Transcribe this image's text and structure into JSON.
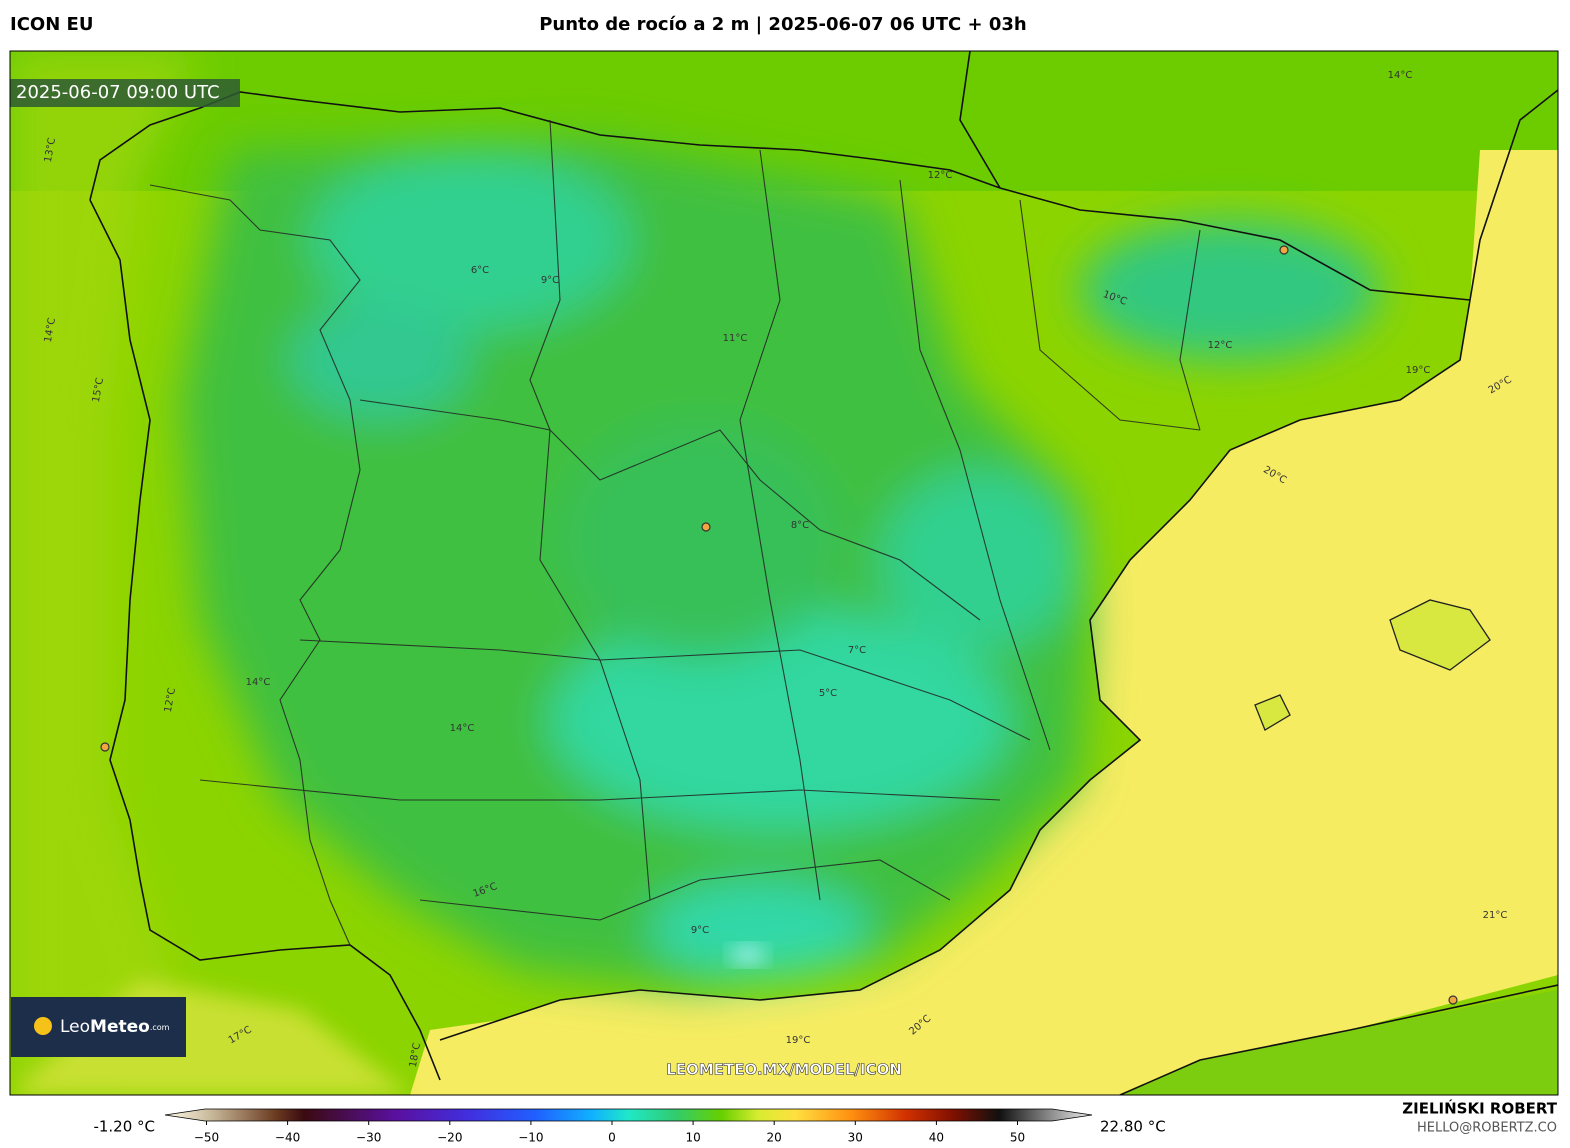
{
  "header": {
    "model": "ICON EU",
    "title": "Punto de rocío a 2 m | 2025-06-07 06 UTC + 03h"
  },
  "map": {
    "timestamp": "2025-06-07 09:00 UTC",
    "watermark": "LEOMETEO.MX/MODEL/ICON",
    "logo": {
      "brand_light": "Leo",
      "brand_bold": "Meteo",
      "suffix": ".com"
    },
    "contour_labels": [
      "13°C",
      "14°C",
      "15°C",
      "12°C",
      "14°C",
      "14°C",
      "16°C",
      "17°C",
      "18°C",
      "19°C",
      "20°C",
      "21°C",
      "20°C",
      "19°C",
      "20°C",
      "14°C",
      "9°C",
      "8°C",
      "7°C",
      "5°C",
      "11°C",
      "10°C",
      "12°C",
      "9°C",
      "6°C",
      "12°C"
    ]
  },
  "colorbar": {
    "min_label": "-1.20 °C",
    "max_label": "22.80 °C",
    "ticks": [
      {
        "value": -50,
        "label": "−50"
      },
      {
        "value": -40,
        "label": "−40"
      },
      {
        "value": -30,
        "label": "−30"
      },
      {
        "value": -20,
        "label": "−20"
      },
      {
        "value": -10,
        "label": "−10"
      },
      0,
      10,
      20,
      30,
      40,
      50
    ]
  },
  "footer": {
    "author": "ZIELIŃSKI ROBERT",
    "email": "HELLO@ROBERTZ.CO"
  }
}
